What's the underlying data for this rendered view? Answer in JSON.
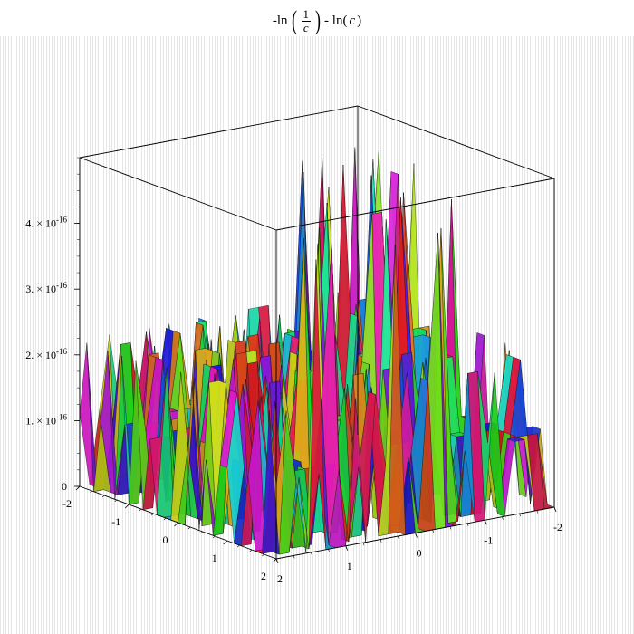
{
  "title": {
    "prefix": "-ln",
    "frac_num": "1",
    "frac_den": "c",
    "middle": "- ln(",
    "var": "c",
    "suffix": ")"
  },
  "chart_data": {
    "type": "surface3d",
    "title": "-ln(1/c) - ln(c)",
    "description_note": "",
    "xlim": [
      -2,
      2
    ],
    "ylim": [
      -2,
      2
    ],
    "zlim": [
      0,
      5e-16
    ],
    "x_ticks": [
      "-2",
      "-1",
      "0",
      "1",
      "2"
    ],
    "y_ticks": [
      "2",
      "1",
      "0",
      "-1",
      "-2"
    ],
    "z_ticks": [
      {
        "value": 0,
        "label": "0"
      },
      {
        "value": 1e-16,
        "label": "1. × 10"
      },
      {
        "value": 2e-16,
        "label": "2. × 10"
      },
      {
        "value": 3e-16,
        "label": "3. × 10"
      },
      {
        "value": 4e-16,
        "label": "4. × 10"
      }
    ],
    "z_exponent": "-16",
    "grid": false,
    "legend": "none"
  }
}
